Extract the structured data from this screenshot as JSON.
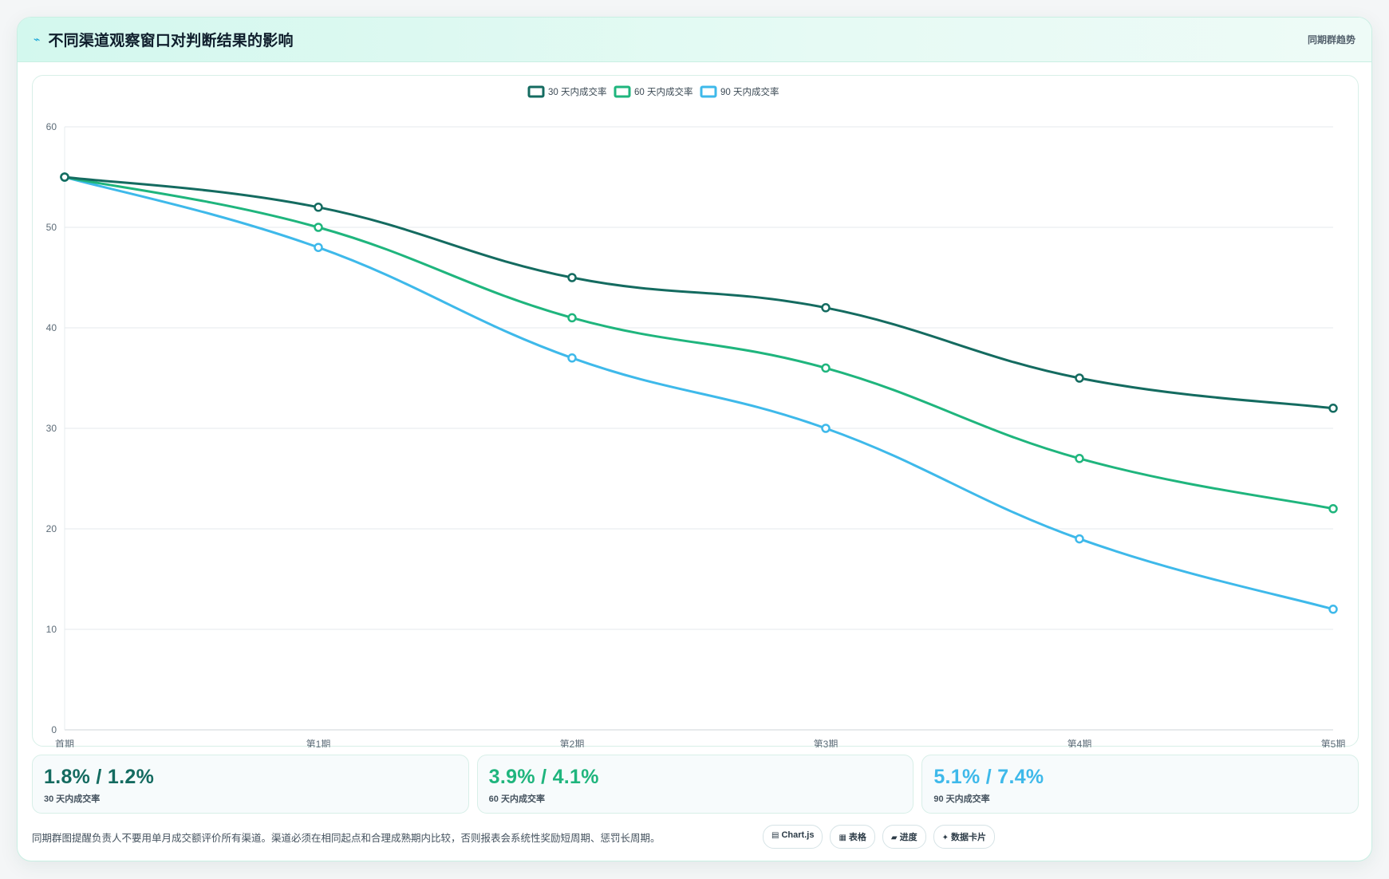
{
  "header": {
    "icon": "trend-icon",
    "title": "不同渠道观察窗口对判断结果的影响",
    "tag": "同期群趋势"
  },
  "colors": {
    "s30": "#146b60",
    "s60": "#1fb57d",
    "s90": "#3eb9ea",
    "grid": "#e4e9ec",
    "axis_text": "#5c6b77"
  },
  "chart_data": {
    "type": "line",
    "title": "",
    "xlabel": "",
    "ylabel": "",
    "categories": [
      "首期",
      "第1期",
      "第2期",
      "第3期",
      "第4期",
      "第5期"
    ],
    "ylim": [
      0,
      60
    ],
    "yticks": [
      "0",
      "10",
      "20",
      "30",
      "40",
      "50",
      "60"
    ],
    "grid": true,
    "legend_position": "top-center",
    "series": [
      {
        "name": "30 天内成交率",
        "color": "#146b60",
        "values": [
          55,
          52,
          45,
          42,
          35,
          32
        ]
      },
      {
        "name": "60 天内成交率",
        "color": "#1fb57d",
        "values": [
          55,
          50,
          41,
          36,
          27,
          22
        ]
      },
      {
        "name": "90 天内成交率",
        "color": "#3eb9ea",
        "values": [
          55,
          48,
          37,
          30,
          19,
          12
        ]
      }
    ]
  },
  "stats": [
    {
      "value": "1.8% / 1.2%",
      "label": "30 天内成交率",
      "color": "#146b60"
    },
    {
      "value": "3.9% / 4.1%",
      "label": "60 天内成交率",
      "color": "#1fb57d"
    },
    {
      "value": "5.1% / 7.4%",
      "label": "90 天内成交率",
      "color": "#3eb9ea"
    }
  ],
  "footer": {
    "note": "同期群图提醒负责人不要用单月成交额评价所有渠道。渠道必须在相同起点和合理成熟期内比较，否则报表会系统性奖励短周期、惩罚长周期。",
    "chips": [
      {
        "icon": "chart-icon",
        "glyph": "▤",
        "label": "Chart.js"
      },
      {
        "icon": "table-icon",
        "glyph": "▦",
        "label": "表格"
      },
      {
        "icon": "progress-icon",
        "glyph": "▰",
        "label": "进度"
      },
      {
        "icon": "sparkle-icon",
        "glyph": "✦",
        "label": "数据卡片"
      }
    ]
  }
}
